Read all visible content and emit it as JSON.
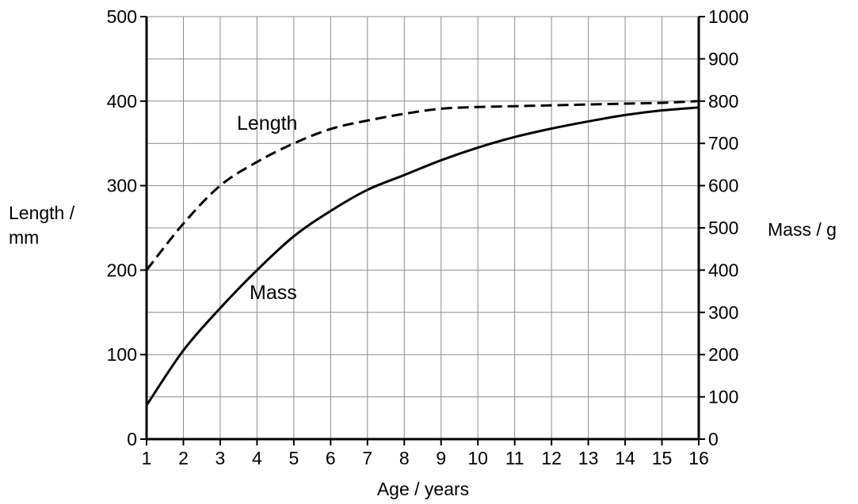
{
  "chart_data": {
    "type": "line",
    "title": "",
    "xlabel": "Age / years",
    "ylabel": "Length /\nmm",
    "y2label": "Mass / g",
    "x_ticks": [
      1,
      2,
      3,
      4,
      5,
      6,
      7,
      8,
      9,
      10,
      11,
      12,
      13,
      14,
      15,
      16
    ],
    "xlim": [
      1,
      16
    ],
    "y_ticks": [
      0,
      100,
      200,
      300,
      400,
      500
    ],
    "ylim": [
      0,
      500
    ],
    "y2_ticks": [
      0,
      100,
      200,
      300,
      400,
      500,
      600,
      700,
      800,
      900,
      1000
    ],
    "y2lim": [
      0,
      1000
    ],
    "grid": true,
    "series": [
      {
        "name": "Length",
        "axis": "left",
        "style": "dashed",
        "x": [
          1,
          2,
          3,
          4,
          5,
          6,
          7,
          8,
          9,
          10,
          11,
          12,
          13,
          14,
          15,
          16
        ],
        "values": [
          200,
          255,
          300,
          328,
          350,
          367,
          377,
          385,
          391,
          393,
          394,
          395,
          396,
          397,
          398,
          400
        ]
      },
      {
        "name": "Mass",
        "axis": "right",
        "style": "solid",
        "x": [
          1,
          2,
          3,
          4,
          5,
          6,
          7,
          8,
          9,
          10,
          11,
          12,
          13,
          14,
          15,
          16
        ],
        "values": [
          80,
          210,
          310,
          400,
          480,
          540,
          590,
          625,
          660,
          690,
          715,
          735,
          752,
          767,
          778,
          785
        ]
      }
    ]
  }
}
